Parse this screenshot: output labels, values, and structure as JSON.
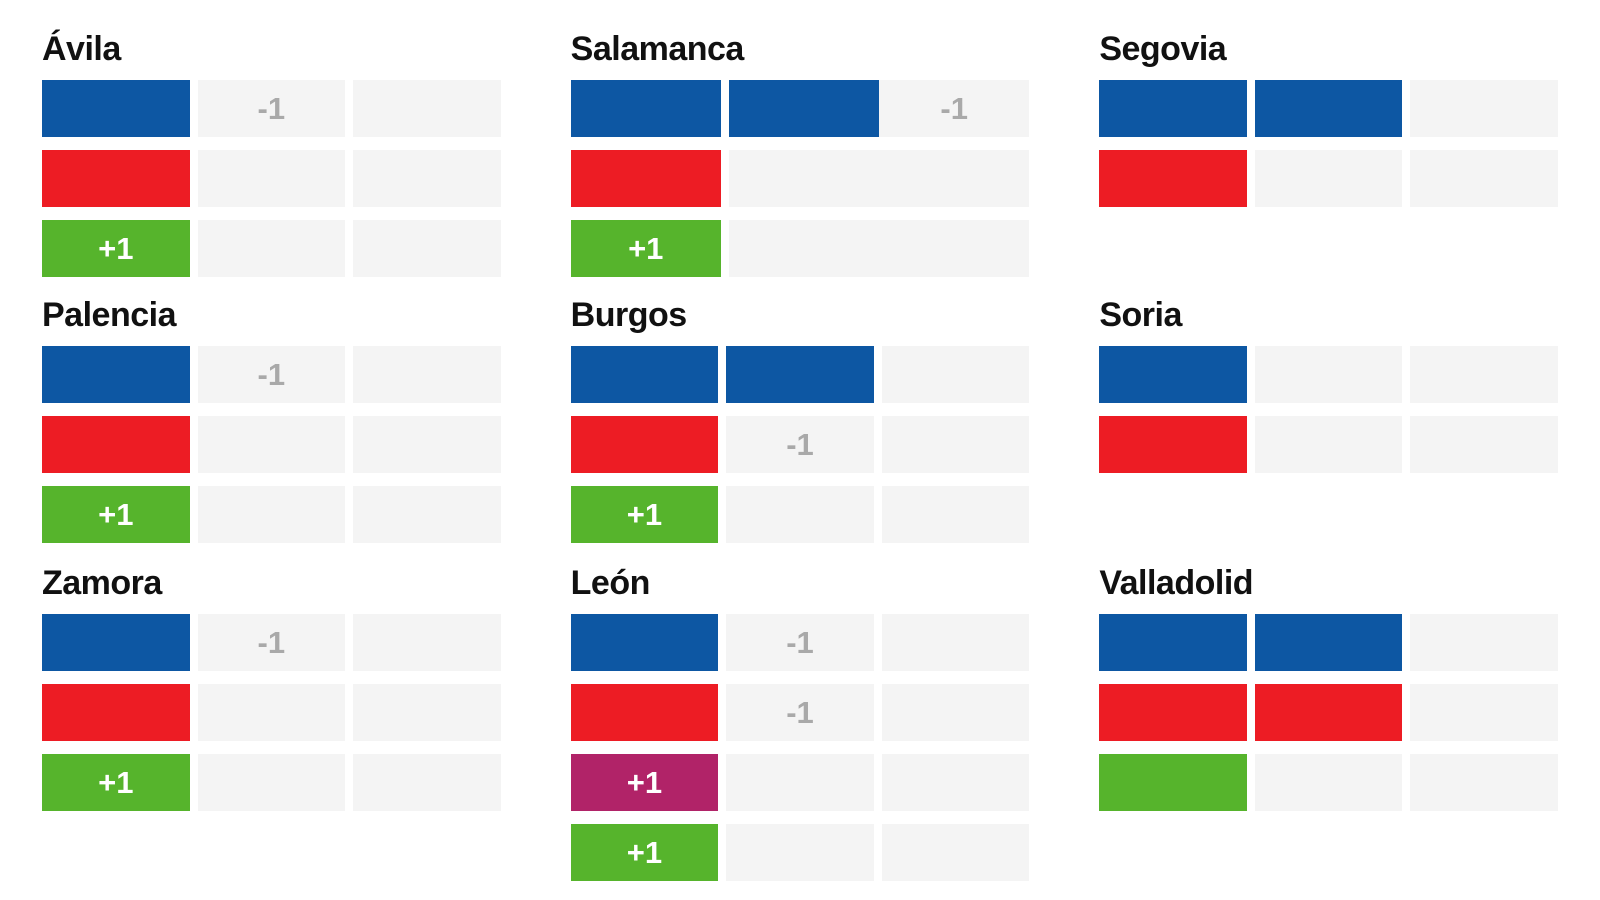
{
  "page_background": "#ffffff",
  "palette": {
    "blue": "#0d57a3",
    "red": "#ed1c24",
    "green": "#56b42c",
    "magenta": "#b12368",
    "empty": "#f4f4f4",
    "title_text": "#111111",
    "negative_label_text": "#a9a9a9",
    "positive_label_text": "#ffffff"
  },
  "chart_data": {
    "type": "bar",
    "subtype": "seat-unit-grid",
    "slots_per_row": 3,
    "legend": "none",
    "grid_layout": [
      [
        "Ávila",
        "Salamanca",
        "Segovia"
      ],
      [
        "Palencia",
        "Burgos",
        "Soria"
      ],
      [
        "Zamora",
        "León",
        "Valladolid"
      ]
    ],
    "provinces": [
      {
        "name": "Ávila",
        "rows": [
          {
            "color": "blue",
            "seats": 1,
            "change": "-1",
            "segments": [
              {
                "color": "blue",
                "units": 1,
                "label": ""
              },
              {
                "color": "empty",
                "units": 1,
                "label": "-1"
              },
              {
                "color": "empty",
                "units": 1,
                "label": ""
              }
            ]
          },
          {
            "color": "red",
            "seats": 1,
            "change": "",
            "segments": [
              {
                "color": "red",
                "units": 1,
                "label": ""
              },
              {
                "color": "empty",
                "units": 1,
                "label": ""
              },
              {
                "color": "empty",
                "units": 1,
                "label": ""
              }
            ]
          },
          {
            "color": "green",
            "seats": 1,
            "change": "+1",
            "segments": [
              {
                "color": "green",
                "units": 1,
                "label": "+1"
              },
              {
                "color": "empty",
                "units": 1,
                "label": ""
              },
              {
                "color": "empty",
                "units": 1,
                "label": ""
              }
            ]
          }
        ]
      },
      {
        "name": "Salamanca",
        "rows": [
          {
            "color": "blue",
            "seats": 2,
            "change": "-1",
            "segments": [
              {
                "color": "blue",
                "units": 1,
                "label": ""
              },
              {
                "color": "blue",
                "units": 1,
                "label": ""
              },
              {
                "color": "empty",
                "units": 1,
                "label": "-1",
                "attached": true
              }
            ]
          },
          {
            "color": "red",
            "seats": 1,
            "change": "",
            "segments": [
              {
                "color": "red",
                "units": 1,
                "label": ""
              },
              {
                "color": "empty",
                "units": 2,
                "label": ""
              }
            ]
          },
          {
            "color": "green",
            "seats": 1,
            "change": "+1",
            "segments": [
              {
                "color": "green",
                "units": 1,
                "label": "+1"
              },
              {
                "color": "empty",
                "units": 2,
                "label": ""
              }
            ]
          }
        ]
      },
      {
        "name": "Segovia",
        "rows": [
          {
            "color": "blue",
            "seats": 2,
            "change": "",
            "segments": [
              {
                "color": "blue",
                "units": 1,
                "label": ""
              },
              {
                "color": "blue",
                "units": 1,
                "label": ""
              },
              {
                "color": "empty",
                "units": 1,
                "label": ""
              }
            ]
          },
          {
            "color": "red",
            "seats": 1,
            "change": "",
            "segments": [
              {
                "color": "red",
                "units": 1,
                "label": ""
              },
              {
                "color": "empty",
                "units": 1,
                "label": ""
              },
              {
                "color": "empty",
                "units": 1,
                "label": ""
              }
            ]
          }
        ]
      },
      {
        "name": "Palencia",
        "rows": [
          {
            "color": "blue",
            "seats": 1,
            "change": "-1",
            "segments": [
              {
                "color": "blue",
                "units": 1,
                "label": ""
              },
              {
                "color": "empty",
                "units": 1,
                "label": "-1"
              },
              {
                "color": "empty",
                "units": 1,
                "label": ""
              }
            ]
          },
          {
            "color": "red",
            "seats": 1,
            "change": "",
            "segments": [
              {
                "color": "red",
                "units": 1,
                "label": ""
              },
              {
                "color": "empty",
                "units": 1,
                "label": ""
              },
              {
                "color": "empty",
                "units": 1,
                "label": ""
              }
            ]
          },
          {
            "color": "green",
            "seats": 1,
            "change": "+1",
            "segments": [
              {
                "color": "green",
                "units": 1,
                "label": "+1"
              },
              {
                "color": "empty",
                "units": 1,
                "label": ""
              },
              {
                "color": "empty",
                "units": 1,
                "label": ""
              }
            ]
          }
        ]
      },
      {
        "name": "Burgos",
        "rows": [
          {
            "color": "blue",
            "seats": 2,
            "change": "",
            "segments": [
              {
                "color": "blue",
                "units": 1,
                "label": ""
              },
              {
                "color": "blue",
                "units": 1,
                "label": ""
              },
              {
                "color": "empty",
                "units": 1,
                "label": ""
              }
            ]
          },
          {
            "color": "red",
            "seats": 1,
            "change": "-1",
            "segments": [
              {
                "color": "red",
                "units": 1,
                "label": ""
              },
              {
                "color": "empty",
                "units": 1,
                "label": "-1"
              },
              {
                "color": "empty",
                "units": 1,
                "label": ""
              }
            ]
          },
          {
            "color": "green",
            "seats": 1,
            "change": "+1",
            "segments": [
              {
                "color": "green",
                "units": 1,
                "label": "+1"
              },
              {
                "color": "empty",
                "units": 1,
                "label": ""
              },
              {
                "color": "empty",
                "units": 1,
                "label": ""
              }
            ]
          }
        ]
      },
      {
        "name": "Soria",
        "rows": [
          {
            "color": "blue",
            "seats": 1,
            "change": "",
            "segments": [
              {
                "color": "blue",
                "units": 1,
                "label": ""
              },
              {
                "color": "empty",
                "units": 1,
                "label": ""
              },
              {
                "color": "empty",
                "units": 1,
                "label": ""
              }
            ]
          },
          {
            "color": "red",
            "seats": 1,
            "change": "",
            "segments": [
              {
                "color": "red",
                "units": 1,
                "label": ""
              },
              {
                "color": "empty",
                "units": 1,
                "label": ""
              },
              {
                "color": "empty",
                "units": 1,
                "label": ""
              }
            ]
          }
        ]
      },
      {
        "name": "Zamora",
        "rows": [
          {
            "color": "blue",
            "seats": 1,
            "change": "-1",
            "segments": [
              {
                "color": "blue",
                "units": 1,
                "label": ""
              },
              {
                "color": "empty",
                "units": 1,
                "label": "-1"
              },
              {
                "color": "empty",
                "units": 1,
                "label": ""
              }
            ]
          },
          {
            "color": "red",
            "seats": 1,
            "change": "",
            "segments": [
              {
                "color": "red",
                "units": 1,
                "label": ""
              },
              {
                "color": "empty",
                "units": 1,
                "label": ""
              },
              {
                "color": "empty",
                "units": 1,
                "label": ""
              }
            ]
          },
          {
            "color": "green",
            "seats": 1,
            "change": "+1",
            "segments": [
              {
                "color": "green",
                "units": 1,
                "label": "+1"
              },
              {
                "color": "empty",
                "units": 1,
                "label": ""
              },
              {
                "color": "empty",
                "units": 1,
                "label": ""
              }
            ]
          }
        ]
      },
      {
        "name": "León",
        "rows": [
          {
            "color": "blue",
            "seats": 1,
            "change": "-1",
            "segments": [
              {
                "color": "blue",
                "units": 1,
                "label": ""
              },
              {
                "color": "empty",
                "units": 1,
                "label": "-1"
              },
              {
                "color": "empty",
                "units": 1,
                "label": ""
              }
            ]
          },
          {
            "color": "red",
            "seats": 1,
            "change": "-1",
            "segments": [
              {
                "color": "red",
                "units": 1,
                "label": ""
              },
              {
                "color": "empty",
                "units": 1,
                "label": "-1"
              },
              {
                "color": "empty",
                "units": 1,
                "label": ""
              }
            ]
          },
          {
            "color": "magenta",
            "seats": 1,
            "change": "+1",
            "segments": [
              {
                "color": "magenta",
                "units": 1,
                "label": "+1"
              },
              {
                "color": "empty",
                "units": 1,
                "label": ""
              },
              {
                "color": "empty",
                "units": 1,
                "label": ""
              }
            ]
          },
          {
            "color": "green",
            "seats": 1,
            "change": "+1",
            "segments": [
              {
                "color": "green",
                "units": 1,
                "label": "+1"
              },
              {
                "color": "empty",
                "units": 1,
                "label": ""
              },
              {
                "color": "empty",
                "units": 1,
                "label": ""
              }
            ]
          }
        ]
      },
      {
        "name": "Valladolid",
        "rows": [
          {
            "color": "blue",
            "seats": 2,
            "change": "",
            "segments": [
              {
                "color": "blue",
                "units": 1,
                "label": ""
              },
              {
                "color": "blue",
                "units": 1,
                "label": ""
              },
              {
                "color": "empty",
                "units": 1,
                "label": ""
              }
            ]
          },
          {
            "color": "red",
            "seats": 2,
            "change": "",
            "segments": [
              {
                "color": "red",
                "units": 1,
                "label": ""
              },
              {
                "color": "red",
                "units": 1,
                "label": ""
              },
              {
                "color": "empty",
                "units": 1,
                "label": ""
              }
            ]
          },
          {
            "color": "green",
            "seats": 1,
            "change": "",
            "segments": [
              {
                "color": "green",
                "units": 1,
                "label": ""
              },
              {
                "color": "empty",
                "units": 1,
                "label": ""
              },
              {
                "color": "empty",
                "units": 1,
                "label": ""
              }
            ]
          }
        ]
      }
    ]
  }
}
